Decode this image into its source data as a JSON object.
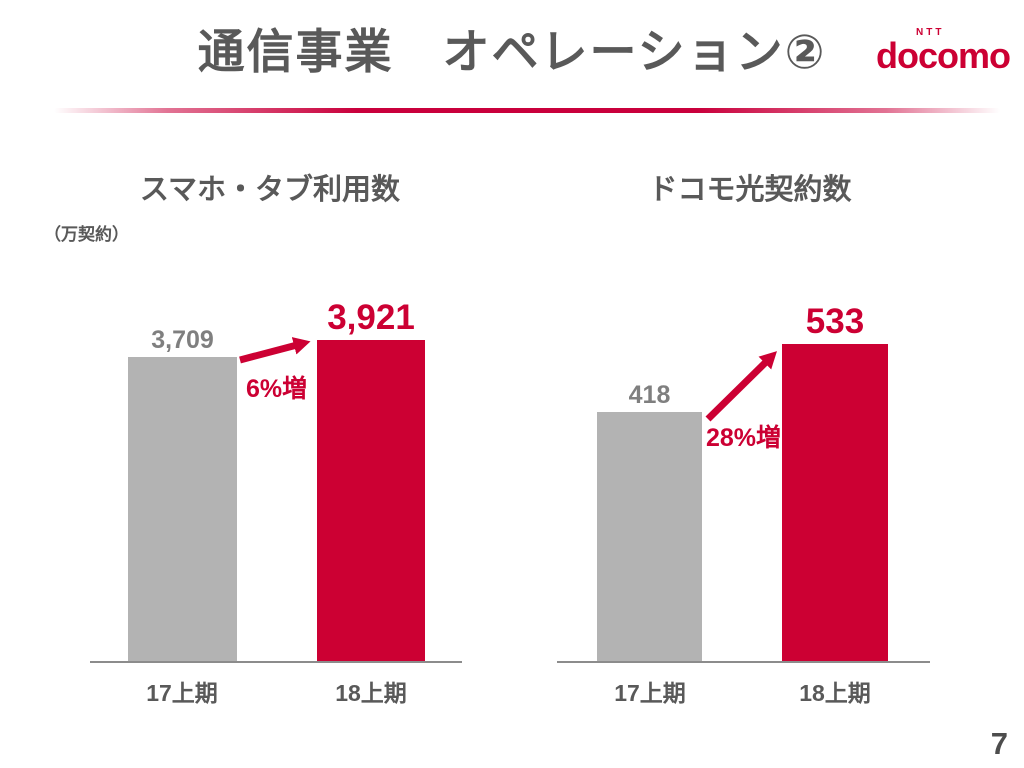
{
  "slide": {
    "title": "通信事業　オペレーション②",
    "page_number": "7",
    "logo": {
      "ntt": "NTT",
      "docomo": "docomo"
    }
  },
  "colors": {
    "accent_red": "#CC0033",
    "bar_gray": "#B3B3B3",
    "heading_gray": "#595959",
    "value_gray": "#7F7F7F"
  },
  "chart_data": [
    {
      "type": "bar",
      "title": "スマホ・タブ利用数",
      "unit_label": "（万契約）",
      "categories": [
        "17上期",
        "18上期"
      ],
      "values": [
        3709,
        3921
      ],
      "value_labels": [
        "3,709",
        "3,921"
      ],
      "annotation": "6%増",
      "series_colors": [
        "#B3B3B3",
        "#CC0033"
      ],
      "ylim": [
        0,
        3921
      ],
      "grid": false,
      "legend": "none"
    },
    {
      "type": "bar",
      "title": "ドコモ光契約数",
      "unit_label": "",
      "categories": [
        "17上期",
        "18上期"
      ],
      "values": [
        418,
        533
      ],
      "value_labels": [
        "418",
        "533"
      ],
      "annotation": "28%増",
      "series_colors": [
        "#B3B3B3",
        "#CC0033"
      ],
      "ylim": [
        0,
        533
      ],
      "grid": false,
      "legend": "none"
    }
  ]
}
